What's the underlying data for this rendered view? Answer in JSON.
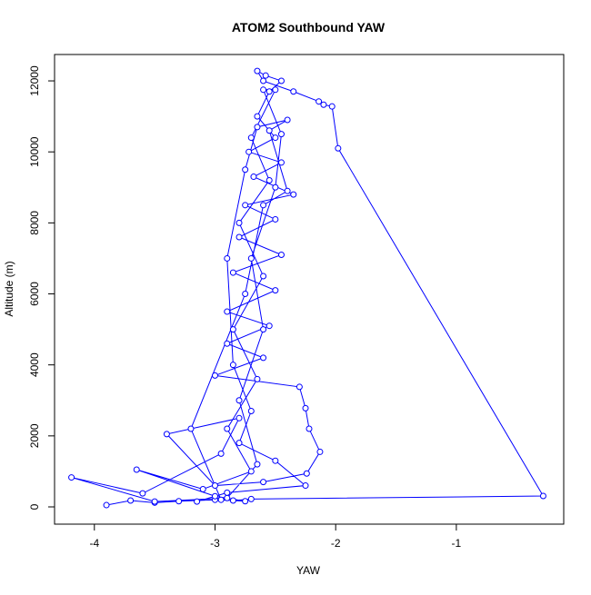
{
  "chart_data": {
    "type": "line",
    "marker": "circle",
    "title": "ATOM2 Southbound YAW",
    "x_label": "YAW",
    "y_label": "Altitude (m)",
    "color": "#0000ff",
    "xlim": [
      -4.33,
      -0.11
    ],
    "ylim": [
      -486,
      12743
    ],
    "xticks": [
      -4,
      -3,
      -2,
      -1
    ],
    "yticks": [
      0,
      2000,
      4000,
      6000,
      8000,
      10000,
      12000
    ],
    "series": [
      {
        "name": "YAW",
        "x": [
          -3.9,
          -3.7,
          -3.5,
          -3.3,
          -3.0,
          -2.85,
          -2.7,
          -0.28,
          -1.98,
          -2.03,
          -2.1,
          -2.14,
          -2.35,
          -2.6,
          -2.65,
          -2.58,
          -2.45,
          -2.55,
          -2.65,
          -2.5,
          -2.72,
          -2.45,
          -2.68,
          -2.35,
          -2.75,
          -2.5,
          -2.8,
          -2.45,
          -2.85,
          -2.5,
          -2.9,
          -2.55,
          -2.9,
          -2.6,
          -3.0,
          -2.3,
          -2.25,
          -2.22,
          -2.13,
          -2.24,
          -2.6,
          -3.0,
          -3.4,
          -2.8,
          -2.95,
          -3.6,
          -4.19,
          -3.5,
          -2.9,
          -2.65,
          -2.8,
          -2.6,
          -2.7,
          -2.5,
          -2.45,
          -2.6,
          -2.5,
          -2.7,
          -2.55,
          -2.8,
          -2.6,
          -2.85,
          -2.65,
          -2.9,
          -2.7,
          -3.1,
          -3.65,
          -3.0,
          -2.75,
          -2.95,
          -3.2,
          -2.75,
          -2.6,
          -2.4,
          -2.55,
          -2.4,
          -2.65,
          -2.75,
          -2.9,
          -2.85,
          -2.7,
          -2.8,
          -2.5,
          -2.25,
          -2.9,
          -3.15
        ],
        "values": [
          50,
          180,
          120,
          160,
          200,
          180,
          220,
          307,
          10100,
          11280,
          11330,
          11420,
          11700,
          12000,
          12280,
          12150,
          12000,
          11700,
          11000,
          10400,
          10000,
          9700,
          9300,
          8800,
          8500,
          8100,
          7600,
          7100,
          6600,
          6100,
          5500,
          5100,
          4600,
          4200,
          3700,
          3380,
          2780,
          2200,
          1550,
          940,
          700,
          600,
          2050,
          2500,
          1500,
          380,
          830,
          150,
          250,
          1200,
          3000,
          5000,
          7000,
          9000,
          10500,
          11750,
          11750,
          10400,
          9200,
          8000,
          6500,
          5000,
          3600,
          2200,
          1000,
          500,
          1050,
          300,
          160,
          200,
          2200,
          6000,
          8500,
          8900,
          10600,
          10900,
          10700,
          9500,
          7000,
          4000,
          2700,
          1800,
          1300,
          600,
          400,
          150
        ]
      }
    ]
  }
}
